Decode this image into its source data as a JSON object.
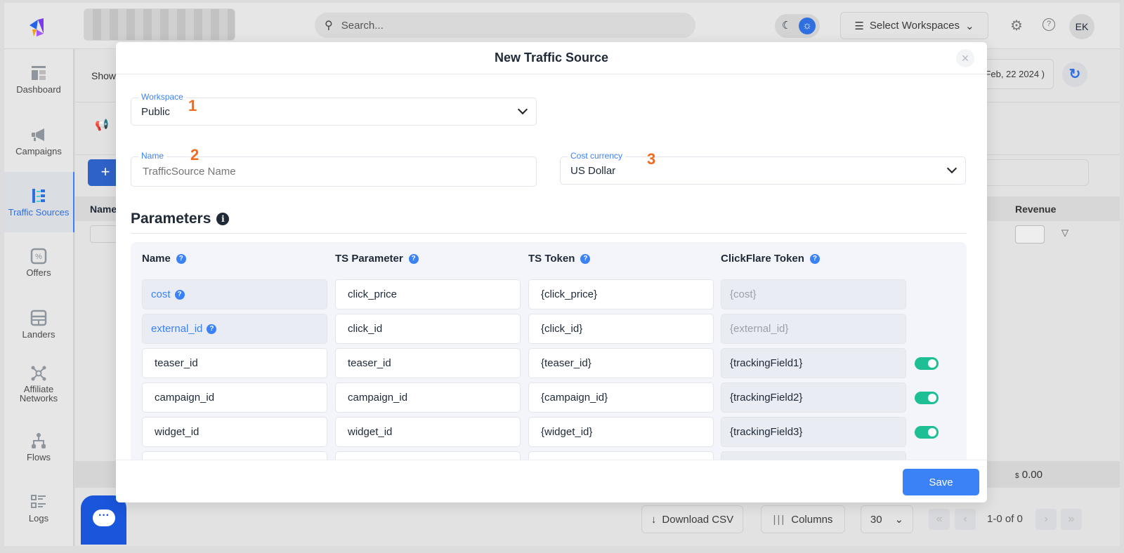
{
  "topbar": {
    "search_placeholder": "Search...",
    "workspace_select": "Select Workspaces",
    "avatar": "EK"
  },
  "sidebar": {
    "items": [
      {
        "label": "Dashboard",
        "icon": "dashboard-icon"
      },
      {
        "label": "Campaigns",
        "icon": "megaphone-icon"
      },
      {
        "label": "Traffic Sources",
        "icon": "traffic-sources-icon",
        "active": true
      },
      {
        "label": "Offers",
        "icon": "offer-icon"
      },
      {
        "label": "Landers",
        "icon": "lander-icon"
      },
      {
        "label": "Affiliate Networks",
        "icon": "network-icon"
      },
      {
        "label": "Flows",
        "icon": "flow-icon"
      },
      {
        "label": "Logs",
        "icon": "logs-icon"
      }
    ]
  },
  "background": {
    "show_label": "Show",
    "date_range": "Feb, 22 2024 )",
    "table_name_header": "Name",
    "table_revenue_header": "Revenue",
    "total_revenue": "0.00",
    "currency_symbol": "$",
    "download_csv": "Download CSV",
    "columns": "Columns",
    "page_size": "30",
    "pagination": "1-0 of 0"
  },
  "modal": {
    "title": "New Traffic Source",
    "workspace": {
      "label": "Workspace",
      "value": "Public"
    },
    "name": {
      "label": "Name",
      "placeholder": "TrafficSource Name",
      "value": ""
    },
    "cost_currency": {
      "label": "Cost currency",
      "value": "US Dollar"
    },
    "annotations": [
      "1",
      "2",
      "3"
    ],
    "parameters_title": "Parameters",
    "columns": [
      "Name",
      "TS Parameter",
      "TS Token",
      "ClickFlare Token"
    ],
    "rows": [
      {
        "name": "cost",
        "ts_parameter": "click_price",
        "ts_token": "{click_price}",
        "cf_token": "{cost}",
        "locked": true
      },
      {
        "name": "external_id",
        "ts_parameter": "click_id",
        "ts_token": "{click_id}",
        "cf_token": "{external_id}",
        "locked": true
      },
      {
        "name": "teaser_id",
        "ts_parameter": "teaser_id",
        "ts_token": "{teaser_id}",
        "cf_token": "{trackingField1}",
        "enabled": true
      },
      {
        "name": "campaign_id",
        "ts_parameter": "campaign_id",
        "ts_token": "{campaign_id}",
        "cf_token": "{trackingField2}",
        "enabled": true
      },
      {
        "name": "widget_id",
        "ts_parameter": "widget_id",
        "ts_token": "{widget_id}",
        "cf_token": "{trackingField3}",
        "enabled": true
      },
      {
        "name": "",
        "ts_parameter": "",
        "ts_token": "",
        "cf_token": ""
      }
    ],
    "save_label": "Save"
  },
  "colors": {
    "accent": "#3b82f6",
    "toggle_on": "#1fbf95",
    "annotation": "#f26a1b",
    "chat": "#1a56db"
  }
}
